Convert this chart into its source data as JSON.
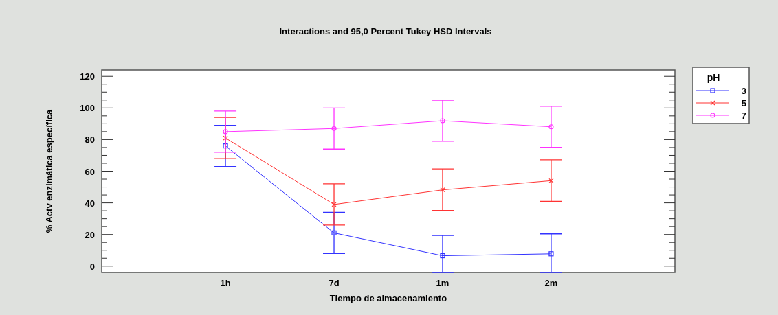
{
  "chart_data": {
    "type": "line",
    "title": "Interactions and 95,0 Percent Tukey HSD Intervals",
    "xlabel": "Tiempo de almacenamiento",
    "ylabel": "% Actv enzimática específica",
    "legend_title": "pH",
    "categories": [
      "1h",
      "7d",
      "1m",
      "2m"
    ],
    "series": [
      {
        "name": "3",
        "color": "#3333ff",
        "marker": "square",
        "values": [
          76,
          21,
          6.6,
          7.8
        ],
        "errors": [
          [
            63,
            89
          ],
          [
            8,
            34
          ],
          [
            -4,
            19.4
          ],
          [
            -4,
            20.4
          ]
        ]
      },
      {
        "name": "5",
        "color": "#ff3333",
        "marker": "cross",
        "values": [
          81,
          39,
          48.2,
          54
        ],
        "errors": [
          [
            68,
            94
          ],
          [
            26,
            52
          ],
          [
            35.2,
            61.5
          ],
          [
            40.9,
            67.2
          ]
        ]
      },
      {
        "name": "7",
        "color": "#ff33ff",
        "marker": "circle",
        "values": [
          85,
          87,
          91.9,
          88.1
        ],
        "errors": [
          [
            72,
            98
          ],
          [
            74,
            100
          ],
          [
            78.9,
            104.9
          ],
          [
            75.1,
            101.1
          ]
        ]
      }
    ],
    "ylim": [
      -4,
      124
    ],
    "yticks": [
      0,
      {
        "value": 5,
        "label": null
      },
      {
        "value": 10,
        "label": null
      },
      {
        "value": 15,
        "label": null
      },
      20,
      {
        "value": 25,
        "label": null
      },
      {
        "value": 30,
        "label": null
      },
      {
        "value": 35,
        "label": null
      },
      40,
      {
        "value": 45,
        "label": null
      },
      {
        "value": 50,
        "label": null
      },
      {
        "value": 55,
        "label": null
      },
      60,
      {
        "value": 65,
        "label": null
      },
      {
        "value": 70,
        "label": null
      },
      {
        "value": 75,
        "label": null
      },
      80,
      {
        "value": 85,
        "label": null
      },
      {
        "value": 90,
        "label": null
      },
      {
        "value": 95,
        "label": null
      },
      100,
      {
        "value": 105,
        "label": null
      },
      {
        "value": 110,
        "label": null
      },
      {
        "value": 115,
        "label": null
      },
      120
    ],
    "grid": false,
    "legend": "top right",
    "line_style": "solid"
  }
}
